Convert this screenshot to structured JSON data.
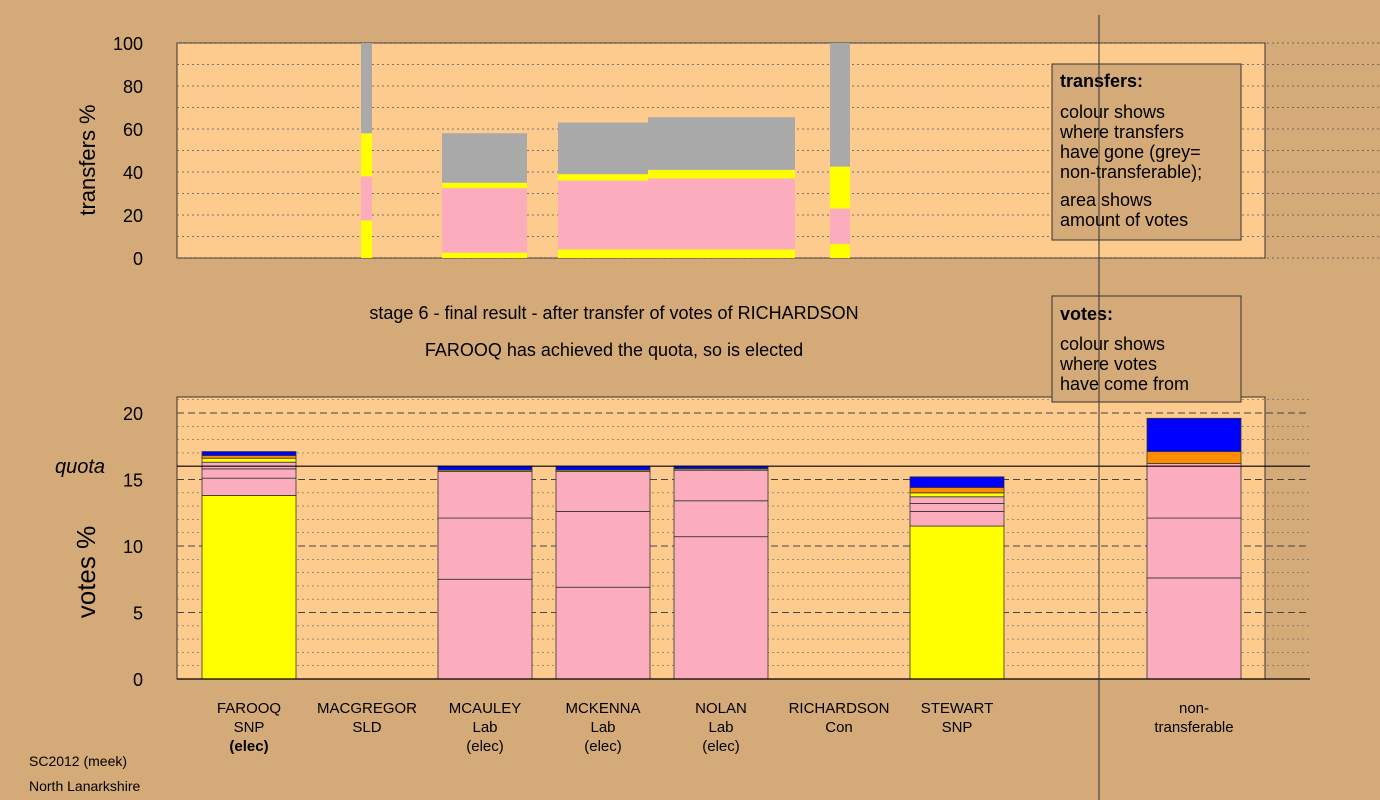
{
  "colors": {
    "background": "#d4aa78",
    "panel": "#fecb8e",
    "SNP": "#ffff00",
    "Lab": "#fbadbe",
    "Con": "#0000ff",
    "SLD": "#ff8c00",
    "non_transferable": "#a9a9a9"
  },
  "chart_data": [
    {
      "type": "bar",
      "ylabel": "transfers %",
      "ylim": [
        0,
        100
      ],
      "yticks": [
        0,
        20,
        40,
        60,
        80,
        100
      ],
      "grid": true,
      "description_lines": [],
      "bars": [
        {
          "candidate": "MACGREGOR",
          "width_share": 0.1,
          "segments": [
            {
              "party": "SNP",
              "value": 17.5
            },
            {
              "party": "Lab",
              "value": 20.5
            },
            {
              "party": "SNP",
              "value": 20
            },
            {
              "party": "non_transferable",
              "value": 42
            }
          ]
        },
        {
          "candidate": "MCAULEY",
          "width_share": 0.8,
          "segments": [
            {
              "party": "SNP",
              "value": 2.5
            },
            {
              "party": "Lab",
              "value": 30
            },
            {
              "party": "SNP",
              "value": 2.5
            },
            {
              "party": "non_transferable",
              "value": 23
            }
          ]
        },
        {
          "candidate": "MCKENNA",
          "width_share": 0.85,
          "segments": [
            {
              "party": "SNP",
              "value": 4
            },
            {
              "party": "Lab",
              "value": 32
            },
            {
              "party": "SNP",
              "value": 3
            },
            {
              "party": "non_transferable",
              "value": 24
            }
          ]
        },
        {
          "candidate": "NOLAN",
          "width_share": 1.4,
          "segments": [
            {
              "party": "SNP",
              "value": 4
            },
            {
              "party": "Lab",
              "value": 33
            },
            {
              "party": "SNP",
              "value": 4
            },
            {
              "party": "non_transferable",
              "value": 24.5
            }
          ]
        },
        {
          "candidate": "RICHARDSON",
          "width_share": 0.2,
          "segments": [
            {
              "party": "SNP",
              "value": 6.5
            },
            {
              "party": "Lab",
              "value": 16.5
            },
            {
              "party": "SNP",
              "value": 19.5
            },
            {
              "party": "non_transferable",
              "value": 57.5
            }
          ]
        }
      ]
    },
    {
      "type": "bar",
      "ylabel": "votes %",
      "ylim": [
        0,
        21
      ],
      "yticks": [
        0,
        5,
        10,
        15,
        20
      ],
      "quota": 16.0,
      "quota_label": "quota",
      "grid": true,
      "categories": [
        "FAROOQ\nSNP\n(elec)",
        "MACGREGOR\nSLD",
        "MCAULEY\nLab\n(elec)",
        "MCKENNA\nLab\n(elec)",
        "NOLAN\nLab\n(elec)",
        "RICHARDSON\nCon",
        "STEWART\nSNP",
        "non-\ntransferable"
      ],
      "bold_lines": [
        "(elec)"
      ],
      "stacks": [
        [
          {
            "party": "SNP",
            "value": 13.8
          },
          {
            "party": "Lab",
            "value": 1.3
          },
          {
            "party": "Lab",
            "value": 0.7
          },
          {
            "party": "Lab",
            "value": 0.5
          },
          {
            "party": "SNP",
            "value": 0.3
          },
          {
            "party": "SLD",
            "value": 0.2
          },
          {
            "party": "Con",
            "value": 0.3
          }
        ],
        [],
        [
          {
            "party": "Lab",
            "value": 7.5
          },
          {
            "party": "Lab",
            "value": 4.6
          },
          {
            "party": "Lab",
            "value": 3.5
          },
          {
            "party": "SNP",
            "value": 0.1
          },
          {
            "party": "Con",
            "value": 0.3
          }
        ],
        [
          {
            "party": "Lab",
            "value": 6.9
          },
          {
            "party": "Lab",
            "value": 5.7
          },
          {
            "party": "Lab",
            "value": 3.0
          },
          {
            "party": "SNP",
            "value": 0.1
          },
          {
            "party": "Con",
            "value": 0.3
          }
        ],
        [
          {
            "party": "Lab",
            "value": 10.7
          },
          {
            "party": "Lab",
            "value": 2.7
          },
          {
            "party": "Lab",
            "value": 2.3
          },
          {
            "party": "SNP",
            "value": 0.1
          },
          {
            "party": "Con",
            "value": 0.2
          }
        ],
        [],
        [
          {
            "party": "SNP",
            "value": 11.5
          },
          {
            "party": "Lab",
            "value": 1.1
          },
          {
            "party": "Lab",
            "value": 0.6
          },
          {
            "party": "Lab",
            "value": 0.5
          },
          {
            "party": "SNP",
            "value": 0.3
          },
          {
            "party": "SLD",
            "value": 0.4
          },
          {
            "party": "Con",
            "value": 0.8
          }
        ],
        [
          {
            "party": "Lab",
            "value": 7.6
          },
          {
            "party": "Lab",
            "value": 4.5
          },
          {
            "party": "Lab",
            "value": 4.1
          },
          {
            "party": "SLD",
            "value": 0.9
          },
          {
            "party": "Con",
            "value": 2.5
          }
        ]
      ]
    }
  ],
  "stage_title": "stage 6 - final result - after transfer of votes of RICHARDSON",
  "stage_subtitle": "FAROOQ has achieved the quota, so is elected",
  "legend_transfers": {
    "title": "transfers:",
    "lines1": [
      "colour shows",
      "where transfers",
      "have gone (grey=",
      "non-transferable);"
    ],
    "lines2": [
      "area shows",
      "amount of votes"
    ]
  },
  "legend_votes": {
    "title": "votes:",
    "lines1": [
      "colour shows",
      "where votes",
      "have come from"
    ]
  },
  "footer": {
    "line1": "SC2012 (meek)",
    "line2": "North Lanarkshire"
  }
}
